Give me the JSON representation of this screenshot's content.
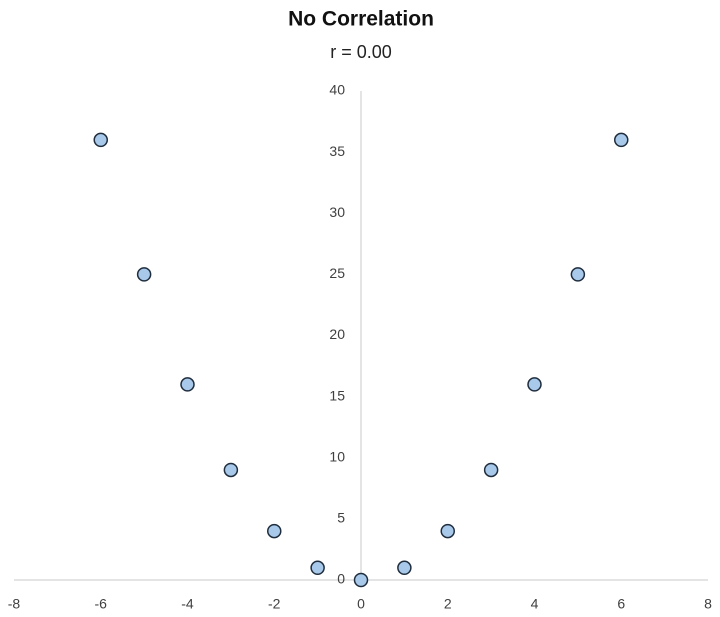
{
  "chart_data": {
    "type": "scatter",
    "title": "No Correlation",
    "subtitle": "r = 0.00",
    "x": [
      -6,
      -5,
      -4,
      -3,
      -2,
      -1,
      0,
      1,
      2,
      3,
      4,
      5,
      6
    ],
    "values": [
      36,
      25,
      16,
      9,
      4,
      1,
      0,
      1,
      4,
      9,
      16,
      25,
      36
    ],
    "color": "#a9c9ea",
    "edge_color": "#1f2d3d",
    "xlim": [
      -8,
      8
    ],
    "xticks": [
      -8,
      -6,
      -4,
      -2,
      0,
      2,
      4,
      6,
      8
    ],
    "ylim": [
      0,
      40
    ],
    "yticks": [
      0,
      5,
      10,
      15,
      20,
      25,
      30,
      35,
      40
    ],
    "grid": false
  }
}
